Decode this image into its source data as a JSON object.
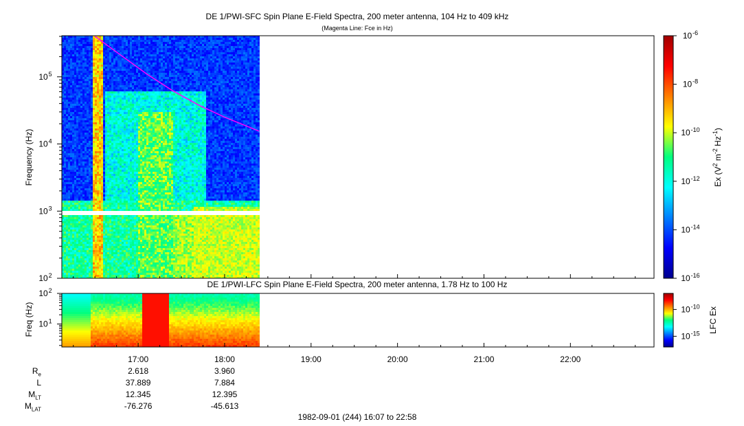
{
  "chart_data": [
    {
      "type": "heatmap",
      "name": "sfc-spectrogram",
      "title": "DE 1/PWI-SFC  Spin Plane E-Field Spectra, 200 meter antenna, 104 Hz to 409 kHz",
      "subtitle": "(Magenta Line: Fce in Hz)",
      "ylabel": "Frequency (Hz)",
      "yscale": "log",
      "ylim": [
        100,
        409000
      ],
      "yticks": [
        {
          "value": 100,
          "base": "10",
          "exp": "2"
        },
        {
          "value": 1000,
          "base": "10",
          "exp": "3"
        },
        {
          "value": 10000,
          "base": "10",
          "exp": "4"
        },
        {
          "value": 100000,
          "base": "10",
          "exp": "5"
        }
      ],
      "xlim_hours": [
        16.117,
        22.967
      ],
      "data_end_hour": 18.4,
      "fce_line": {
        "color": "#ff00ff",
        "hours": [
          16.5,
          16.8,
          17.1,
          17.4,
          17.7,
          18.0,
          18.4
        ],
        "freq_hz": [
          400000,
          210000,
          110000,
          62000,
          38000,
          25000,
          15500
        ]
      },
      "colorbar": {
        "label_parts": [
          "Ex (V",
          "2",
          " m",
          "-2",
          " Hz",
          "-1",
          ")"
        ],
        "min": -16,
        "max": -6,
        "ticks": [
          {
            "exp": -6,
            "base": "10",
            "sup": "-6"
          },
          {
            "exp": -8,
            "base": "10",
            "sup": "-8"
          },
          {
            "exp": -10,
            "base": "10",
            "sup": "-10"
          },
          {
            "exp": -12,
            "base": "10",
            "sup": "-12"
          },
          {
            "exp": -14,
            "base": "10",
            "sup": "-14"
          },
          {
            "exp": -16,
            "base": "10",
            "sup": "-16"
          }
        ]
      }
    },
    {
      "type": "heatmap",
      "name": "lfc-spectrogram",
      "title": "DE 1/PWI-LFC  Spin Plane E-Field Spectra, 200 meter antenna, 1.78 Hz to 100 Hz",
      "ylabel": "Freq (Hz)",
      "yscale": "log",
      "ylim": [
        1.78,
        100
      ],
      "yticks": [
        {
          "value": 10,
          "base": "10",
          "exp": "1"
        },
        {
          "value": 100,
          "base": "10",
          "exp": "2"
        }
      ],
      "colorbar": {
        "label": "LFC Ex",
        "min": -17,
        "max": -7,
        "ticks": [
          {
            "exp": -10,
            "base": "10",
            "sup": "-10"
          },
          {
            "exp": -15,
            "base": "10",
            "sup": "-15"
          }
        ]
      },
      "xticks": [
        "17:00",
        "18:00",
        "19:00",
        "20:00",
        "21:00",
        "22:00"
      ],
      "xtick_hours": [
        17,
        18,
        19,
        20,
        21,
        22
      ]
    }
  ],
  "ephemeris": [
    {
      "label": "R",
      "sub": "e",
      "values": [
        "2.618",
        "3.960"
      ]
    },
    {
      "label": "L",
      "sub": "",
      "values": [
        "37.889",
        "7.884"
      ]
    },
    {
      "label": "M",
      "sub": "LT",
      "values": [
        "12.345",
        "12.395"
      ]
    },
    {
      "label": "M",
      "sub": "LAT",
      "values": [
        "-76.276",
        "-45.613"
      ]
    }
  ],
  "footer": "1982-09-01 (244) 16:07 to 22:58"
}
